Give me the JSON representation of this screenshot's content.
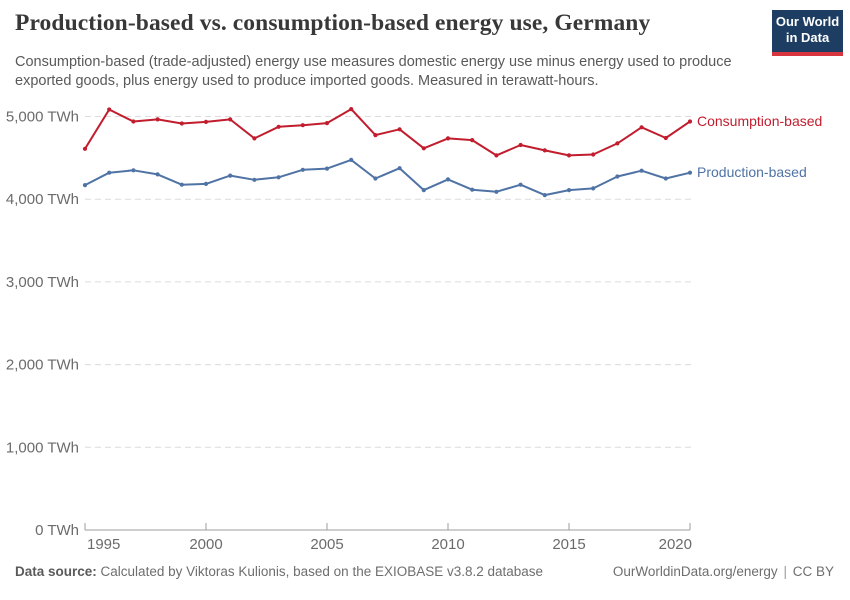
{
  "header": {
    "title": "Production-based vs. consumption-based energy use, Germany",
    "logo": {
      "line1": "Our World",
      "line2": "in Data"
    }
  },
  "subtitle": "Consumption-based (trade-adjusted) energy use measures domestic energy use minus energy used to produce exported goods, plus energy used to produce imported goods. Measured in terawatt-hours.",
  "footer": {
    "source_label": "Data source:",
    "source_text": "Calculated by Viktoras Kulionis, based on the EXIOBASE v3.8.2 database",
    "site_text": "OurWorldinData.org/energy",
    "separator": "|",
    "license": "CC BY"
  },
  "colors": {
    "logo_bg": "#1d3d63",
    "logo_stripe": "#d8353f",
    "grid": "#dcdcdc",
    "axis": "#9e9e9e",
    "tick_text": "#6b6b6b",
    "consumption_red": "#c11d2e",
    "production_blue": "#4f73a5"
  },
  "chart_data": {
    "type": "line",
    "title": "Production-based vs. consumption-based energy use, Germany",
    "unit": "TWh",
    "x": [
      1995,
      1996,
      1997,
      1998,
      1999,
      2000,
      2001,
      2002,
      2003,
      2004,
      2005,
      2006,
      2007,
      2008,
      2009,
      2010,
      2011,
      2012,
      2013,
      2014,
      2015,
      2016,
      2017,
      2018,
      2019,
      2020
    ],
    "series": [
      {
        "name": "Consumption-based",
        "color": "#c11d2e",
        "values": [
          4610,
          5085,
          4940,
          4965,
          4915,
          4935,
          4965,
          4735,
          4875,
          4895,
          4920,
          5090,
          4775,
          4845,
          4615,
          4735,
          4715,
          4530,
          4655,
          4590,
          4530,
          4540,
          4675,
          4870,
          4740,
          4940
        ]
      },
      {
        "name": "Production-based",
        "color": "#4f73a5",
        "values": [
          4170,
          4320,
          4350,
          4300,
          4175,
          4185,
          4285,
          4235,
          4265,
          4355,
          4370,
          4475,
          4250,
          4375,
          4110,
          4240,
          4115,
          4090,
          4175,
          4050,
          4110,
          4130,
          4275,
          4345,
          4250,
          4320
        ]
      }
    ],
    "x_ticks": [
      1995,
      2000,
      2005,
      2010,
      2015,
      2020
    ],
    "y_ticks": [
      0,
      1000,
      2000,
      3000,
      4000,
      5000
    ],
    "y_tick_labels": [
      "0 TWh",
      "1,000 TWh",
      "2,000 TWh",
      "3,000 TWh",
      "4,000 TWh",
      "5,000 TWh"
    ],
    "xlim": [
      1995,
      2020
    ],
    "ylim": [
      0,
      5200
    ],
    "grid": "horizontal-dashed",
    "legend_position": "right-of-line-ends"
  }
}
